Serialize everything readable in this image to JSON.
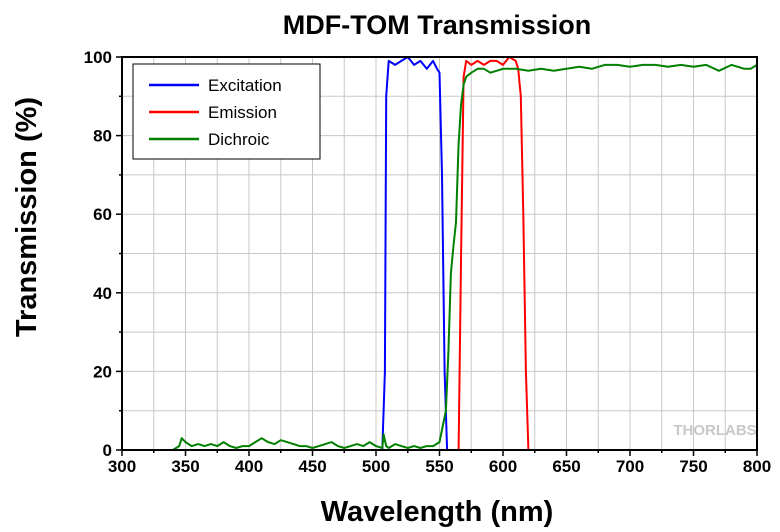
{
  "chart_data": {
    "type": "line",
    "title": "MDF-TOM Transmission",
    "xlabel": "Wavelength (nm)",
    "ylabel": "Transmission (%)",
    "xlim": [
      300,
      800
    ],
    "ylim": [
      0,
      100
    ],
    "xticks": [
      300,
      350,
      400,
      450,
      500,
      550,
      600,
      650,
      700,
      750,
      800
    ],
    "yticks": [
      0,
      20,
      40,
      60,
      80,
      100
    ],
    "grid": true,
    "legend_position": "top-left",
    "watermark": "THORLABS",
    "series": [
      {
        "name": "Excitation",
        "color": "#0000ff",
        "x": [
          300,
          505,
          507,
          508,
          510,
          515,
          520,
          525,
          530,
          535,
          540,
          545,
          548,
          550,
          552,
          554,
          556,
          560,
          800
        ],
        "y": [
          0,
          0,
          20,
          90,
          99,
          98,
          99,
          100,
          98,
          99,
          97,
          99,
          97,
          96,
          70,
          20,
          0,
          0,
          0
        ]
      },
      {
        "name": "Emission",
        "color": "#ff0000",
        "x": [
          300,
          565,
          567,
          569,
          571,
          575,
          580,
          585,
          590,
          595,
          600,
          605,
          610,
          612,
          614,
          616,
          618,
          620,
          625,
          800
        ],
        "y": [
          0,
          0,
          50,
          95,
          99,
          98,
          99,
          98,
          99,
          99,
          98,
          100,
          99,
          97,
          90,
          60,
          20,
          0,
          0,
          0
        ]
      },
      {
        "name": "Dichroic",
        "color": "#008000",
        "x": [
          300,
          340,
          345,
          347,
          350,
          355,
          360,
          365,
          370,
          375,
          380,
          385,
          390,
          395,
          400,
          405,
          410,
          415,
          420,
          425,
          430,
          435,
          440,
          445,
          450,
          455,
          460,
          465,
          470,
          475,
          480,
          485,
          490,
          495,
          500,
          505,
          506,
          508,
          510,
          515,
          520,
          525,
          530,
          535,
          540,
          545,
          550,
          555,
          557,
          559,
          561,
          563,
          565,
          567,
          569,
          571,
          575,
          580,
          585,
          590,
          595,
          600,
          610,
          620,
          630,
          640,
          650,
          660,
          670,
          680,
          690,
          700,
          710,
          720,
          730,
          740,
          750,
          760,
          770,
          780,
          790,
          795,
          800
        ],
        "y": [
          0,
          0,
          1,
          3,
          2,
          1,
          1.5,
          1,
          1.5,
          1,
          2,
          1,
          0.5,
          1,
          1,
          2,
          3,
          2,
          1.5,
          2.5,
          2,
          1.5,
          1,
          1,
          0.5,
          1,
          1.5,
          2,
          1,
          0.5,
          1,
          1.5,
          1,
          2,
          1,
          0.5,
          4,
          1,
          0.5,
          1.5,
          1,
          0.5,
          1,
          0.5,
          1,
          1,
          2,
          10,
          25,
          45,
          52,
          58,
          78,
          88,
          93,
          95,
          96,
          97,
          97,
          96,
          96.5,
          97,
          97,
          96.5,
          97,
          96.5,
          97,
          97.5,
          97,
          98,
          98,
          97.5,
          98,
          98,
          97.5,
          98,
          97.5,
          98,
          96.5,
          98,
          97,
          97,
          98
        ]
      }
    ]
  }
}
